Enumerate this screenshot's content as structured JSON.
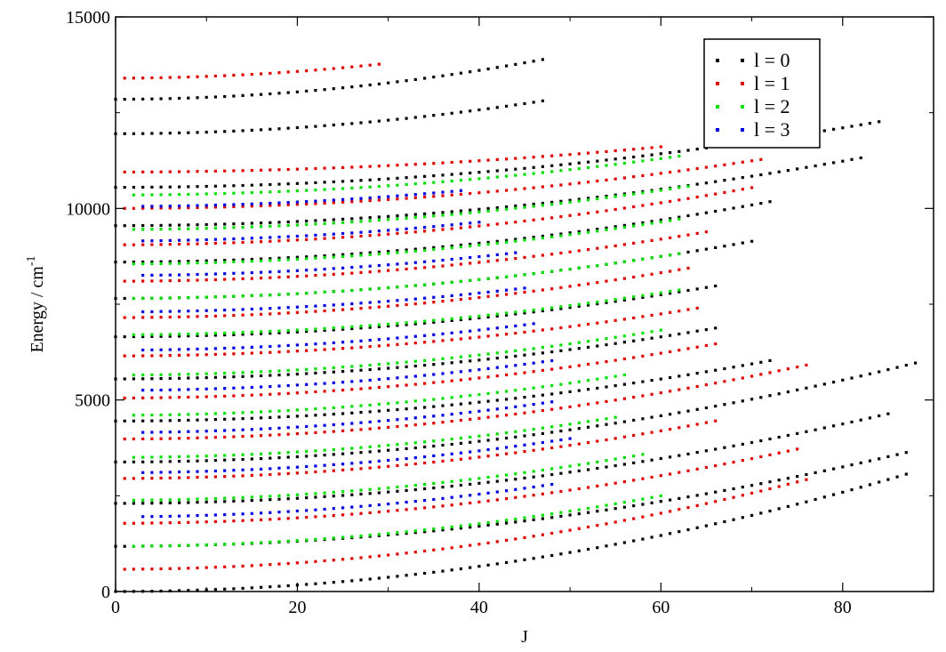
{
  "chart_data": {
    "type": "scatter",
    "title": "",
    "xlabel": "J",
    "ylabel_main": "Energy / cm",
    "ylabel_sup": "-1",
    "xlim": [
      0,
      90
    ],
    "ylim": [
      0,
      15000
    ],
    "x_ticks": [
      0,
      20,
      40,
      60,
      80
    ],
    "x_tick_labels": [
      "0",
      "20",
      "40",
      "60",
      "80"
    ],
    "y_ticks": [
      0,
      5000,
      10000,
      15000
    ],
    "y_tick_labels": [
      "0",
      "5000",
      "10000",
      "15000"
    ],
    "grid": false,
    "legend_position": "top-right",
    "legend": [
      {
        "label": "l = 0",
        "color": "#000000"
      },
      {
        "label": "l = 1",
        "color": "#e00000"
      },
      {
        "label": "l = 2",
        "color": "#00e000"
      },
      {
        "label": "l = 3",
        "color": "#0000e0"
      }
    ],
    "series": [
      {
        "name": "l = 0",
        "color": "#000000",
        "bands": [
          {
            "e0": 0,
            "b": 0.4,
            "jmin": 0,
            "jmax": 87,
            "step": 1
          },
          {
            "e0": 1180,
            "b": 0.32,
            "jmin": 0,
            "jmax": 87,
            "step": 1
          },
          {
            "e0": 2300,
            "b": 0.32,
            "jmin": 0,
            "jmax": 85,
            "step": 1
          },
          {
            "e0": 3380,
            "b": 0.33,
            "jmin": 0,
            "jmax": 88,
            "step": 1
          },
          {
            "e0": 4450,
            "b": 0.3,
            "jmin": 0,
            "jmax": 72,
            "step": 1
          },
          {
            "e0": 5550,
            "b": 0.3,
            "jmin": 0,
            "jmax": 66,
            "step": 1
          },
          {
            "e0": 6650,
            "b": 0.3,
            "jmin": 0,
            "jmax": 66,
            "step": 1
          },
          {
            "e0": 7650,
            "b": 0.3,
            "jmin": 0,
            "jmax": 70,
            "step": 1
          },
          {
            "e0": 8600,
            "b": 0.3,
            "jmin": 0,
            "jmax": 72,
            "step": 1
          },
          {
            "e0": 9550,
            "b": 0.26,
            "jmin": 0,
            "jmax": 82,
            "step": 1
          },
          {
            "e0": 10550,
            "b": 0.24,
            "jmin": 0,
            "jmax": 84,
            "step": 1
          },
          {
            "e0": 11950,
            "b": 0.38,
            "jmin": 0,
            "jmax": 47,
            "step": 1
          },
          {
            "e0": 12850,
            "b": 0.46,
            "jmin": 0,
            "jmax": 47,
            "step": 1
          }
        ]
      },
      {
        "name": "l = 1",
        "color": "#e00000",
        "bands": [
          {
            "e0": 580,
            "b": 0.4,
            "jmin": 1,
            "jmax": 76,
            "step": 1
          },
          {
            "e0": 1780,
            "b": 0.34,
            "jmin": 1,
            "jmax": 75,
            "step": 1
          },
          {
            "e0": 2950,
            "b": 0.34,
            "jmin": 1,
            "jmax": 66,
            "step": 1
          },
          {
            "e0": 3980,
            "b": 0.33,
            "jmin": 1,
            "jmax": 76,
            "step": 1
          },
          {
            "e0": 5050,
            "b": 0.32,
            "jmin": 1,
            "jmax": 66,
            "step": 1
          },
          {
            "e0": 6150,
            "b": 0.3,
            "jmin": 1,
            "jmax": 64,
            "step": 1
          },
          {
            "e0": 7150,
            "b": 0.32,
            "jmin": 1,
            "jmax": 63,
            "step": 1
          },
          {
            "e0": 8100,
            "b": 0.3,
            "jmin": 1,
            "jmax": 65,
            "step": 1
          },
          {
            "e0": 9050,
            "b": 0.3,
            "jmin": 1,
            "jmax": 70,
            "step": 1
          },
          {
            "e0": 10000,
            "b": 0.25,
            "jmin": 1,
            "jmax": 71,
            "step": 1
          },
          {
            "e0": 10950,
            "b": 0.18,
            "jmin": 1,
            "jmax": 60,
            "step": 1
          },
          {
            "e0": 13400,
            "b": 0.42,
            "jmin": 1,
            "jmax": 29,
            "step": 1
          }
        ]
      },
      {
        "name": "l = 2",
        "color": "#00e000",
        "bands": [
          {
            "e0": 1180,
            "b": 0.36,
            "jmin": 2,
            "jmax": 60,
            "step": 1
          },
          {
            "e0": 2380,
            "b": 0.35,
            "jmin": 2,
            "jmax": 58,
            "step": 1
          },
          {
            "e0": 3500,
            "b": 0.34,
            "jmin": 2,
            "jmax": 55,
            "step": 1
          },
          {
            "e0": 4600,
            "b": 0.33,
            "jmin": 2,
            "jmax": 56,
            "step": 1
          },
          {
            "e0": 5650,
            "b": 0.32,
            "jmin": 2,
            "jmax": 60,
            "step": 1
          },
          {
            "e0": 6700,
            "b": 0.3,
            "jmin": 2,
            "jmax": 62,
            "step": 1
          },
          {
            "e0": 7650,
            "b": 0.3,
            "jmin": 2,
            "jmax": 62,
            "step": 1
          },
          {
            "e0": 8550,
            "b": 0.3,
            "jmin": 2,
            "jmax": 62,
            "step": 1
          },
          {
            "e0": 9450,
            "b": 0.28,
            "jmin": 2,
            "jmax": 63,
            "step": 1
          },
          {
            "e0": 10350,
            "b": 0.26,
            "jmin": 2,
            "jmax": 62,
            "step": 1
          }
        ]
      },
      {
        "name": "l = 3",
        "color": "#0000e0",
        "bands": [
          {
            "e0": 1950,
            "b": 0.36,
            "jmin": 3,
            "jmax": 48,
            "step": 1
          },
          {
            "e0": 3100,
            "b": 0.35,
            "jmin": 3,
            "jmax": 50,
            "step": 1
          },
          {
            "e0": 4150,
            "b": 0.34,
            "jmin": 3,
            "jmax": 48,
            "step": 1
          },
          {
            "e0": 5250,
            "b": 0.33,
            "jmin": 3,
            "jmax": 48,
            "step": 1
          },
          {
            "e0": 6300,
            "b": 0.32,
            "jmin": 3,
            "jmax": 46,
            "step": 1
          },
          {
            "e0": 7300,
            "b": 0.3,
            "jmin": 3,
            "jmax": 45,
            "step": 1
          },
          {
            "e0": 8250,
            "b": 0.3,
            "jmin": 3,
            "jmax": 44,
            "step": 1
          },
          {
            "e0": 9150,
            "b": 0.3,
            "jmin": 3,
            "jmax": 40,
            "step": 1
          },
          {
            "e0": 10050,
            "b": 0.28,
            "jmin": 3,
            "jmax": 38,
            "step": 1
          }
        ]
      }
    ]
  }
}
